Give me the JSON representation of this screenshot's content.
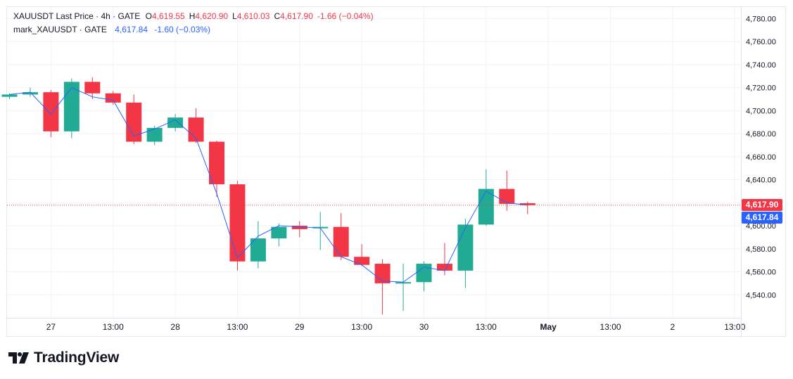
{
  "legend": {
    "main": {
      "name": "XAUUSDT Last Price · 4h · GATE",
      "open_label": "O",
      "open": "4,619.55",
      "high_label": "H",
      "high": "4,620.90",
      "low_label": "L",
      "low": "4,610.03",
      "close_label": "C",
      "close": "4,617.90",
      "change": "-1.66 (−0.04%)"
    },
    "mark": {
      "name": "mark_XAUUSDT · GATE",
      "value": "4,617.84",
      "change": "-1.60 (−0.03%)"
    }
  },
  "price_tags": {
    "last": "4,617.90",
    "mark": "4,617.84"
  },
  "brand": {
    "name": "TradingView"
  },
  "colors": {
    "up": "#22ab94",
    "down": "#f23645",
    "mark_line": "#2962ff",
    "last_tag": "#f23645",
    "mark_tag": "#2962ff",
    "text_down": "#f23645",
    "text_mark": "#2962ff"
  },
  "chart_data": {
    "type": "candlestick",
    "interval": "4h",
    "y_axis": {
      "range": [
        4520,
        4790
      ],
      "ticks": [
        4540,
        4560,
        4580,
        4600,
        4620,
        4640,
        4660,
        4680,
        4700,
        4720,
        4740,
        4760,
        4780
      ],
      "tick_labels": [
        "4,540.00",
        "4,560.00",
        "4,580.00",
        "4,600.00",
        "4,620.00",
        "4,640.00",
        "4,660.00",
        "4,680.00",
        "4,700.00",
        "4,720.00",
        "4,740.00",
        "4,760.00",
        "4,780.00"
      ]
    },
    "x_axis": {
      "tick_labels": [
        "27",
        "13:00",
        "28",
        "13:00",
        "29",
        "13:00",
        "30",
        "13:00",
        "May",
        "13:00",
        "2",
        "13:00"
      ],
      "tick_bar_index": [
        2,
        5,
        8,
        11,
        14,
        17,
        20,
        23,
        26,
        29,
        32,
        35
      ]
    },
    "candles": [
      {
        "o": 4712,
        "h": 4715,
        "l": 4710,
        "c": 4714
      },
      {
        "o": 4714,
        "h": 4720,
        "l": 4712,
        "c": 4716
      },
      {
        "o": 4716,
        "h": 4718,
        "l": 4677,
        "c": 4682
      },
      {
        "o": 4682,
        "h": 4728,
        "l": 4676,
        "c": 4725
      },
      {
        "o": 4725,
        "h": 4729,
        "l": 4710,
        "c": 4715
      },
      {
        "o": 4715,
        "h": 4717,
        "l": 4705,
        "c": 4707
      },
      {
        "o": 4707,
        "h": 4714,
        "l": 4671,
        "c": 4673
      },
      {
        "o": 4673,
        "h": 4687,
        "l": 4670,
        "c": 4685
      },
      {
        "o": 4685,
        "h": 4697,
        "l": 4682,
        "c": 4694
      },
      {
        "o": 4694,
        "h": 4702,
        "l": 4672,
        "c": 4673
      },
      {
        "o": 4673,
        "h": 4674,
        "l": 4625,
        "c": 4636
      },
      {
        "o": 4636,
        "h": 4639,
        "l": 4561,
        "c": 4569
      },
      {
        "o": 4569,
        "h": 4604,
        "l": 4563,
        "c": 4589
      },
      {
        "o": 4589,
        "h": 4602,
        "l": 4582,
        "c": 4599
      },
      {
        "o": 4600,
        "h": 4604,
        "l": 4590,
        "c": 4597
      },
      {
        "o": 4598,
        "h": 4612,
        "l": 4579,
        "c": 4599
      },
      {
        "o": 4599,
        "h": 4611,
        "l": 4570,
        "c": 4573
      },
      {
        "o": 4573,
        "h": 4584,
        "l": 4565,
        "c": 4566
      },
      {
        "o": 4567,
        "h": 4571,
        "l": 4523,
        "c": 4550
      },
      {
        "o": 4550,
        "h": 4567,
        "l": 4526,
        "c": 4551
      },
      {
        "o": 4551,
        "h": 4569,
        "l": 4543,
        "c": 4567
      },
      {
        "o": 4567,
        "h": 4585,
        "l": 4557,
        "c": 4561
      },
      {
        "o": 4561,
        "h": 4606,
        "l": 4546,
        "c": 4601
      },
      {
        "o": 4601,
        "h": 4649,
        "l": 4600,
        "c": 4632
      },
      {
        "o": 4632,
        "h": 4648,
        "l": 4613,
        "c": 4619
      },
      {
        "o": 4619.55,
        "h": 4620.9,
        "l": 4610.03,
        "c": 4617.9
      }
    ],
    "mark_series": [
      4714,
      4716,
      4697,
      4720,
      4712,
      4709,
      4678,
      4684,
      4692,
      4676,
      4628,
      4572,
      4591,
      4600,
      4599,
      4598,
      4573,
      4566,
      4552,
      4551,
      4564,
      4561,
      4598,
      4630,
      4620,
      4617.84
    ],
    "last_price": 4617.9,
    "mark_price": 4617.84
  }
}
